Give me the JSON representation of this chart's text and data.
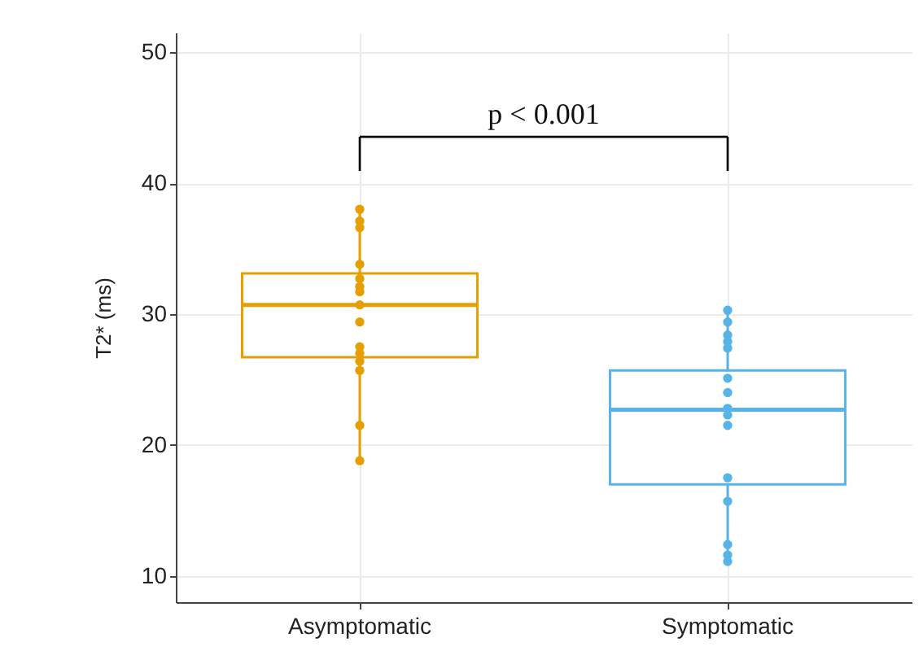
{
  "chart_data": {
    "type": "box",
    "ylabel": "T2* (ms)",
    "categories": [
      "Asymptomatic",
      "Symptomatic"
    ],
    "colors": [
      "#e69f00",
      "#56b4e9"
    ],
    "boxes": [
      {
        "low": 18.8,
        "q1": 26.7,
        "median": 30.7,
        "q3": 33.1,
        "high": 38.0
      },
      {
        "low": 11.1,
        "q1": 17.0,
        "median": 22.7,
        "q3": 25.7,
        "high": 30.3
      }
    ],
    "series": [
      {
        "type": "scatter",
        "color": "#e69f00",
        "x": [
          "Asymptomatic",
          "Asymptomatic",
          "Asymptomatic",
          "Asymptomatic",
          "Asymptomatic",
          "Asymptomatic",
          "Asymptomatic",
          "Asymptomatic",
          "Asymptomatic",
          "Asymptomatic",
          "Asymptomatic",
          "Asymptomatic",
          "Asymptomatic",
          "Asymptomatic",
          "Asymptomatic"
        ],
        "values": [
          38.0,
          37.1,
          36.6,
          33.8,
          32.7,
          32.1,
          31.7,
          30.7,
          29.4,
          27.5,
          27.0,
          26.4,
          25.7,
          21.5,
          18.8
        ]
      },
      {
        "type": "scatter",
        "color": "#56b4e9",
        "x": [
          "Symptomatic",
          "Symptomatic",
          "Symptomatic",
          "Symptomatic",
          "Symptomatic",
          "Symptomatic",
          "Symptomatic",
          "Symptomatic",
          "Symptomatic",
          "Symptomatic",
          "Symptomatic",
          "Symptomatic",
          "Symptomatic",
          "Symptomatic",
          "Symptomatic"
        ],
        "values": [
          30.3,
          29.4,
          28.4,
          27.9,
          27.4,
          25.1,
          24.0,
          22.8,
          22.3,
          21.5,
          17.5,
          15.7,
          12.4,
          11.6,
          11.1
        ]
      }
    ],
    "ylim": [
      8,
      51.5
    ],
    "yticks": [
      10,
      20,
      30,
      40,
      50
    ],
    "grid": true,
    "marker": "circle",
    "annotations": [
      "p < 0.001"
    ]
  }
}
